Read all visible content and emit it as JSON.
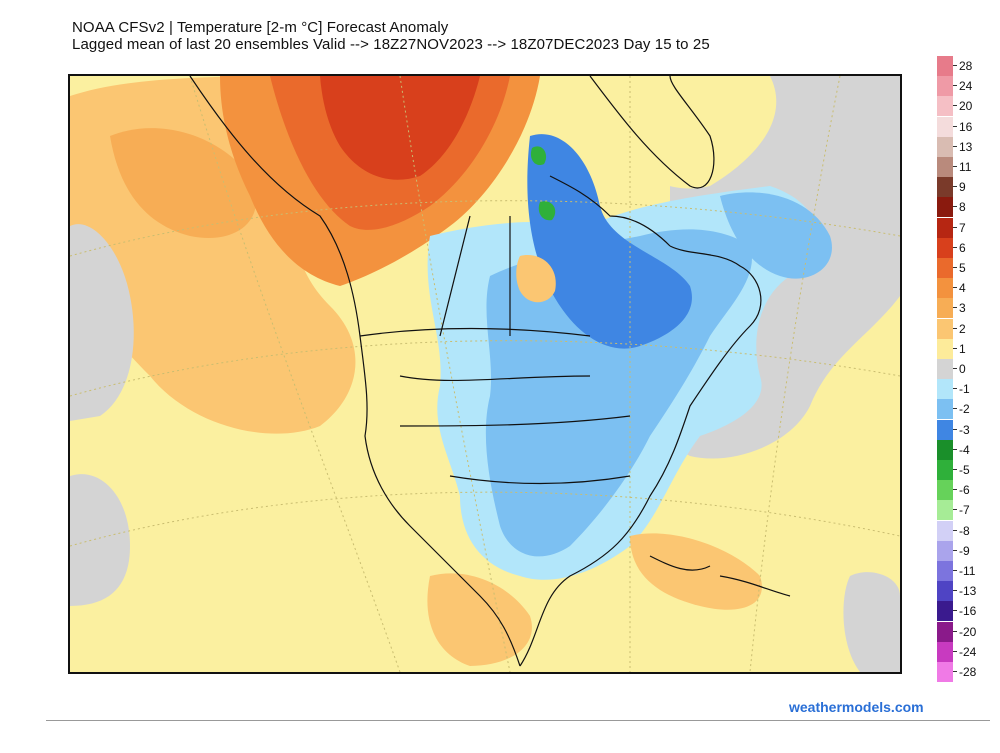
{
  "header": {
    "line1": "NOAA CFSv2 | Temperature [2-m °C] Forecast Anomaly",
    "line2": "Lagged mean of last 20 ensembles Valid --> 18Z27NOV2023 --> 18Z07DEC2023  Day 15 to 25"
  },
  "legend": {
    "entries": [
      {
        "label": "28",
        "color": "#e77b8a"
      },
      {
        "label": "24",
        "color": "#ef9aa6"
      },
      {
        "label": "20",
        "color": "#f5bfc5"
      },
      {
        "label": "16",
        "color": "#f4dcdc"
      },
      {
        "label": "13",
        "color": "#d9bcb2"
      },
      {
        "label": "11",
        "color": "#b98a7c"
      },
      {
        "label": "9",
        "color": "#7a3a2a"
      },
      {
        "label": "8",
        "color": "#8a1a0e"
      },
      {
        "label": "7",
        "color": "#b62612"
      },
      {
        "label": "6",
        "color": "#d8401c"
      },
      {
        "label": "5",
        "color": "#ea6a2c"
      },
      {
        "label": "4",
        "color": "#f3923e"
      },
      {
        "label": "3",
        "color": "#f7ad55"
      },
      {
        "label": "2",
        "color": "#fbc672"
      },
      {
        "label": "1",
        "color": "#fdeb9a"
      },
      {
        "label": "0",
        "color": "#d4d4d4"
      },
      {
        "label": "-1",
        "color": "#b2e6fa"
      },
      {
        "label": "-2",
        "color": "#7cc0f2"
      },
      {
        "label": "-3",
        "color": "#3f86e3"
      },
      {
        "label": "-4",
        "color": "#1a8f2a"
      },
      {
        "label": "-5",
        "color": "#2fb03a"
      },
      {
        "label": "-6",
        "color": "#66d25a"
      },
      {
        "label": "-7",
        "color": "#a6ec96"
      },
      {
        "label": "-8",
        "color": "#d2d0f6"
      },
      {
        "label": "-9",
        "color": "#aaa4ec"
      },
      {
        "label": "-11",
        "color": "#7c74de"
      },
      {
        "label": "-13",
        "color": "#4f44c4"
      },
      {
        "label": "-16",
        "color": "#3a1a8e"
      },
      {
        "label": "-20",
        "color": "#8a1a8a"
      },
      {
        "label": "-24",
        "color": "#c83ac0"
      },
      {
        "label": "-28",
        "color": "#f07ae6"
      }
    ]
  },
  "credit": "weathermodels.com"
}
